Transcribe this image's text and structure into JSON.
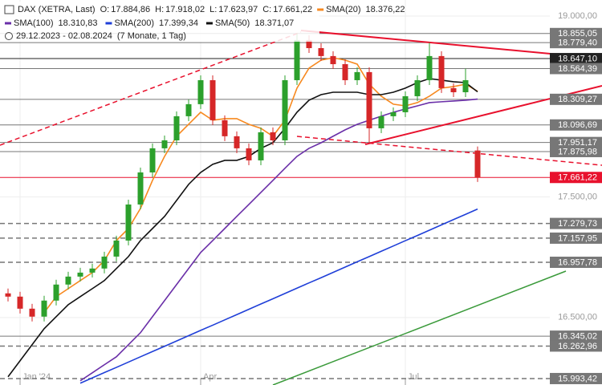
{
  "chart_data": {
    "type": "candlestick",
    "title": "DAX (XETRA, Last)",
    "summary": [
      {
        "name": "O:",
        "value": 17884.86,
        "label": "17.884,86"
      },
      {
        "name": "H:",
        "value": 17918.02,
        "label": "17.918,02"
      },
      {
        "name": "L:",
        "value": 17623.97,
        "label": "17.623,97"
      },
      {
        "name": "C:",
        "value": 17661.22,
        "label": "17.661,22"
      }
    ],
    "period": "29.12.2023 - 02.08.2024",
    "period_note": "(7 Monate, 1 Tag)",
    "x": [
      0,
      1,
      2,
      3,
      4,
      5,
      6,
      7,
      8,
      9,
      10,
      11,
      12,
      13,
      14,
      15,
      16,
      17,
      18,
      19,
      20,
      21,
      22,
      23,
      24,
      25,
      26,
      27,
      28,
      29,
      30,
      31,
      32,
      33,
      34,
      35,
      36,
      37,
      38,
      39
    ],
    "open": [
      16700,
      16673,
      16573,
      16507,
      16640,
      16773,
      16839,
      16872,
      16906,
      17005,
      17138,
      17437,
      17703,
      17903,
      17969,
      18169,
      18269,
      18468,
      18136,
      18003,
      17903,
      17803,
      18036,
      17969,
      18468,
      18801,
      18734,
      18668,
      18601,
      18468,
      18535,
      18069,
      18169,
      18202,
      18335,
      18468,
      18668,
      18402,
      18368,
      17884.86
    ],
    "high": [
      16740,
      16713,
      16613,
      16680,
      16813,
      16879,
      16912,
      16946,
      17045,
      17178,
      17477,
      17743,
      17943,
      18009,
      18209,
      18309,
      18508,
      18508,
      18176,
      18043,
      17943,
      18076,
      18076,
      18508,
      18855,
      18841,
      18774,
      18708,
      18641,
      18575,
      18575,
      18209,
      18242,
      18375,
      18508,
      18779,
      18708,
      18442,
      18564,
      17918.02
    ],
    "low": [
      16633,
      16533,
      16467,
      16467,
      16600,
      16733,
      16799,
      16832,
      16866,
      16965,
      17098,
      17397,
      17663,
      17863,
      17929,
      18129,
      18229,
      18096,
      17963,
      17863,
      17763,
      17763,
      17929,
      17929,
      18428,
      18694,
      18628,
      18561,
      18428,
      18428,
      17951,
      18029,
      18129,
      18162,
      18295,
      18428,
      18362,
      18328,
      18328,
      17623.97
    ],
    "close": [
      16673,
      16573,
      16507,
      16640,
      16773,
      16839,
      16872,
      16906,
      17005,
      17138,
      17437,
      17703,
      17903,
      17969,
      18169,
      18269,
      18468,
      18136,
      18003,
      17903,
      17803,
      18036,
      17969,
      18468,
      18801,
      18734,
      18668,
      18601,
      18468,
      18535,
      18069,
      18169,
      18202,
      18335,
      18468,
      18668,
      18402,
      18368,
      18468,
      17661.22
    ],
    "up_color": "#2ca02c",
    "down_color": "#d62728",
    "series": [
      {
        "name": "SMA(20)",
        "color": "#f7891f",
        "last": {
          "value": 18376.22,
          "label": "18.376,22"
        },
        "values": [
          null,
          null,
          null,
          16540,
          16673,
          16739,
          16806,
          16872,
          16972,
          17138,
          17238,
          17404,
          17637,
          17836,
          18003,
          18102,
          18202,
          18136,
          18149,
          18149,
          18102,
          18069,
          18003,
          18136,
          18402,
          18568,
          18634,
          18654,
          18634,
          18601,
          18435,
          18335,
          18269,
          18255,
          18282,
          18335,
          18402,
          18415,
          18435,
          18376.22
        ]
      },
      {
        "name": "SMA(100)",
        "color": "#6a2fa8",
        "last": {
          "value": 18310.83,
          "label": "18.310,83"
        },
        "values": [
          null,
          null,
          null,
          null,
          null,
          null,
          15975,
          16041,
          16108,
          16174,
          16274,
          16374,
          16507,
          16640,
          16773,
          16906,
          17039,
          17138,
          17238,
          17338,
          17437,
          17537,
          17637,
          17737,
          17836,
          17903,
          17949,
          18003,
          18056,
          18102,
          18136,
          18169,
          18202,
          18229,
          18255,
          18282,
          18289,
          18295,
          18302,
          18310.83
        ]
      },
      {
        "name": "SMA(200)",
        "color": "#1f3fd8",
        "last": {
          "value": 17399.34,
          "label": "17.399,34"
        },
        "values": [
          null,
          null,
          null,
          null,
          null,
          null,
          15955,
          15999,
          16043,
          16086,
          16130,
          16174,
          16218,
          16261,
          16305,
          16349,
          16393,
          16436,
          16480,
          16524,
          16568,
          16612,
          16655,
          16699,
          16743,
          16787,
          16830,
          16874,
          16918,
          16962,
          17005,
          17049,
          17093,
          17137,
          17180,
          17224,
          17268,
          17312,
          17355,
          17399.34
        ]
      },
      {
        "name": "SMA(50)",
        "color": "#111111",
        "last": {
          "value": 18371.07,
          "label": "18.371,07"
        },
        "values": [
          16008,
          16141,
          16274,
          16407,
          16507,
          16606,
          16673,
          16739,
          16806,
          16906,
          17005,
          17138,
          17238,
          17338,
          17471,
          17604,
          17703,
          17770,
          17803,
          17803,
          17836,
          17903,
          17949,
          18069,
          18202,
          18302,
          18348,
          18368,
          18368,
          18368,
          18348,
          18348,
          18368,
          18402,
          18448,
          18481,
          18468,
          18455,
          18448,
          18371.07
        ]
      }
    ],
    "levels": [
      {
        "value": 18855.05,
        "label": "18.855,05",
        "style": "solid",
        "color": "#777777"
      },
      {
        "value": 18779.4,
        "label": "18.779,40",
        "style": "solid",
        "color": "#777777"
      },
      {
        "value": 18647.1,
        "label": "18.647,10",
        "style": "solid",
        "color": "#222222"
      },
      {
        "value": 18564.39,
        "label": "18.564,39",
        "style": "solid",
        "color": "#777777"
      },
      {
        "value": 18309.27,
        "label": "18.309,27",
        "style": "solid",
        "color": "#777777"
      },
      {
        "value": 18096.69,
        "label": "18.096,69",
        "style": "solid",
        "color": "#777777"
      },
      {
        "value": 17951.17,
        "label": "17.951,17",
        "style": "solid",
        "color": "#777777"
      },
      {
        "value": 17875.98,
        "label": "17.875,98",
        "style": "solid",
        "color": "#777777"
      },
      {
        "value": 17661.22,
        "label": "17.661,22",
        "style": "solid",
        "color": "#e8112d"
      },
      {
        "value": 17279.73,
        "label": "17.279,73",
        "style": "dashed",
        "color": "#777777"
      },
      {
        "value": 17157.95,
        "label": "17.157,95",
        "style": "dashed",
        "color": "#777777"
      },
      {
        "value": 16957.78,
        "label": "16.957,78",
        "style": "dashed",
        "color": "#777777"
      },
      {
        "value": 16345.02,
        "label": "16.345,02",
        "style": "solid",
        "color": "#777777"
      },
      {
        "value": 16262.96,
        "label": "16.262,96",
        "style": "dashed",
        "color": "#777777"
      },
      {
        "value": 15993.42,
        "label": "15.993,42",
        "style": "dashed",
        "color": "#777777"
      }
    ],
    "xlim": [
      -0.667,
      45
    ],
    "ylim": [
      15940,
      19133
    ],
    "xticks": [
      {
        "value": 1,
        "label": "Jan '24"
      },
      {
        "value": 16,
        "label": "Apr"
      },
      {
        "value": 33,
        "label": "Jul"
      }
    ],
    "yticks": [
      {
        "value": 19000,
        "label": "19.000,00"
      },
      {
        "value": 17500,
        "label": "17.500,00"
      },
      {
        "value": 16500,
        "label": "16.500,00"
      }
    ],
    "grid": true
  }
}
